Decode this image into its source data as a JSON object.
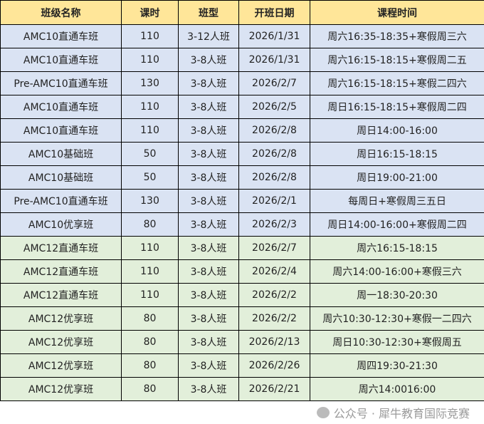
{
  "colors": {
    "header": "#FFE699",
    "amc10_rows": "#DAE3F3",
    "amc12_rows": "#E2EFDA"
  },
  "headers": [
    "班级名称",
    "课时",
    "班型",
    "开班日期",
    "课程时间"
  ],
  "rows": [
    {
      "group": "blue",
      "cells": [
        "AMC10直通车班",
        "110",
        "3-12人班",
        "2026/1/31",
        "周六16:35-18:35+寒假周三六"
      ]
    },
    {
      "group": "blue",
      "cells": [
        "AMC10直通车班",
        "110",
        "3-8人班",
        "2026/1/31",
        "周六16:15-18:15+寒假周二五"
      ]
    },
    {
      "group": "blue",
      "cells": [
        "Pre-AMC10直通车班",
        "130",
        "3-8人班",
        "2026/2/7",
        "周六16:15-18:15+寒假二四六"
      ]
    },
    {
      "group": "blue",
      "cells": [
        "AMC10直通车班",
        "110",
        "3-8人班",
        "2026/2/5",
        "周日16:15-18:15+寒假周二四"
      ]
    },
    {
      "group": "blue",
      "cells": [
        "AMC10直通车班",
        "110",
        "3-8人班",
        "2026/2/8",
        "周日14:00-16:00"
      ]
    },
    {
      "group": "blue",
      "cells": [
        "AMC10基础班",
        "50",
        "3-8人班",
        "2026/2/8",
        "周日16:15-18:15"
      ]
    },
    {
      "group": "blue",
      "cells": [
        "AMC10基础班",
        "50",
        "3-8人班",
        "2026/2/8",
        "周日19:00-21:00"
      ]
    },
    {
      "group": "blue",
      "cells": [
        "Pre-AMC10直通车班",
        "130",
        "3-8人班",
        "2026/2/1",
        "每周日+寒假周三五日"
      ]
    },
    {
      "group": "blue",
      "cells": [
        "AMC10优享班",
        "80",
        "3-8人班",
        "2026/2/3",
        "周日14:00-16:00+寒假周二四"
      ]
    },
    {
      "group": "green",
      "cells": [
        "AMC12直通车班",
        "110",
        "3-8人班",
        "2026/2/7",
        "周六16:15-18:15"
      ]
    },
    {
      "group": "green",
      "cells": [
        "AMC12直通车班",
        "110",
        "3-8人班",
        "2026/2/4",
        "周六14:00-16:00+寒假三六"
      ]
    },
    {
      "group": "green",
      "cells": [
        "AMC12直通车班",
        "110",
        "3-8人班",
        "2026/2/2",
        "周一18:30-20:30"
      ]
    },
    {
      "group": "green",
      "cells": [
        "AMC12优享班",
        "80",
        "3-8人班",
        "2026/2/2",
        "周六10:30-12:30+寒假一二四六"
      ]
    },
    {
      "group": "green",
      "cells": [
        "AMC12优享班",
        "80",
        "3-8人班",
        "2026/2/13",
        "周日10:30-12:30+寒假周五"
      ]
    },
    {
      "group": "green",
      "cells": [
        "AMC12优享班",
        "80",
        "3-8人班",
        "2026/2/26",
        "周四19:30-21:30"
      ]
    },
    {
      "group": "green",
      "cells": [
        "AMC12优享班",
        "80",
        "3-8人班",
        "2026/2/21",
        "周六14:0016:00"
      ]
    }
  ],
  "watermark": "公众号 · 犀牛教育国际竞赛"
}
